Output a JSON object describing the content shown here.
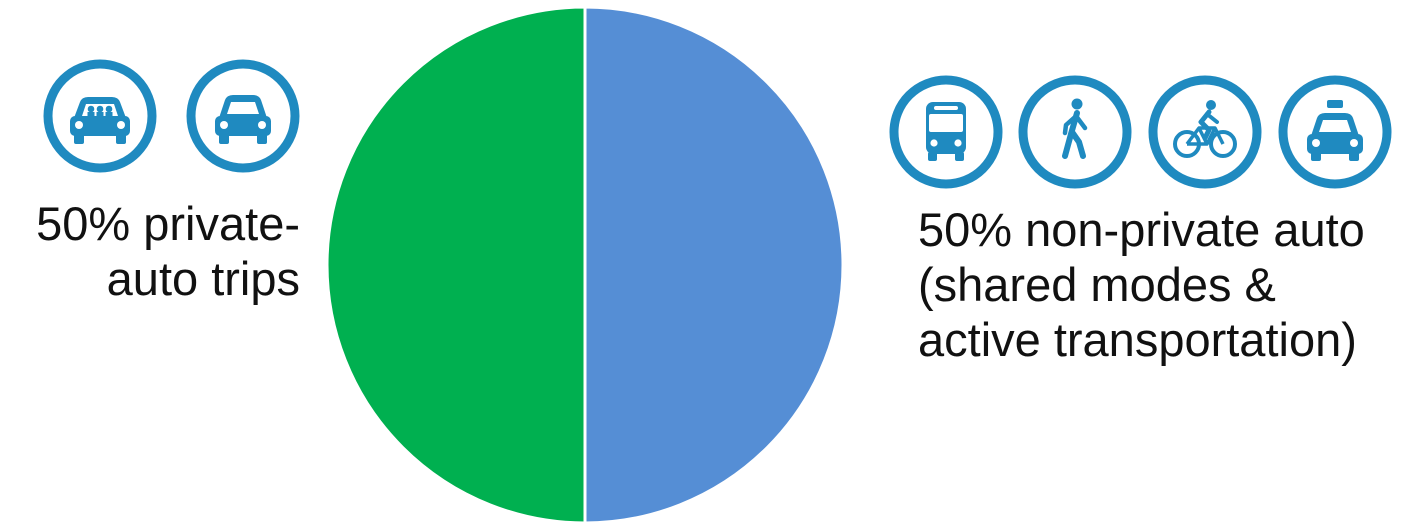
{
  "chart_data": {
    "type": "pie",
    "slices": [
      {
        "label": "50% private-auto trips",
        "value": 50,
        "color": "#558ED5"
      },
      {
        "label": "50% non-private auto (shared modes & active transportation)",
        "value": 50,
        "color": "#00B050"
      }
    ],
    "start_angle_deg": 0,
    "direction": "clockwise",
    "legend": "none"
  },
  "labels": {
    "left": [
      "50% private-",
      "auto trips"
    ],
    "right": [
      "50% non-private auto",
      "(shared modes &",
      "active transportation)"
    ]
  },
  "icons": {
    "left": [
      "carpool-icon",
      "car-icon"
    ],
    "right": [
      "bus-icon",
      "pedestrian-icon",
      "bicycle-icon",
      "taxi-icon"
    ],
    "color": "#1F8AC0"
  }
}
